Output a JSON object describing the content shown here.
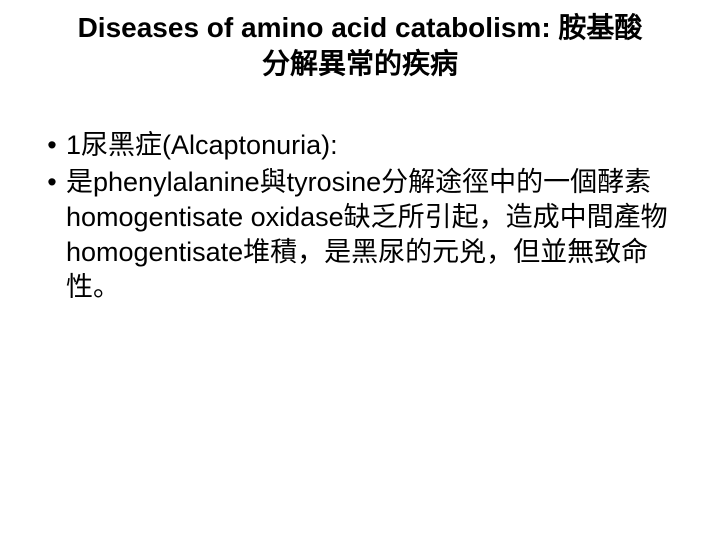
{
  "slide": {
    "title": "Diseases of amino acid catabolism: 胺基酸分解異常的疾病",
    "bullets": [
      "1尿黑症(Alcaptonuria):",
      "是phenylalanine與tyrosine分解途徑中的一個酵素homogentisate oxidase缺乏所引起，造成中間產物homogentisate堆積，是黑尿的元兇，但並無致命性。"
    ],
    "colors": {
      "background": "#ffffff",
      "text": "#000000"
    },
    "typography": {
      "title_fontsize": 28,
      "title_weight": "bold",
      "body_fontsize": 27,
      "font_family": "Arial, Microsoft JhengHei, PMingLiU, sans-serif"
    }
  }
}
